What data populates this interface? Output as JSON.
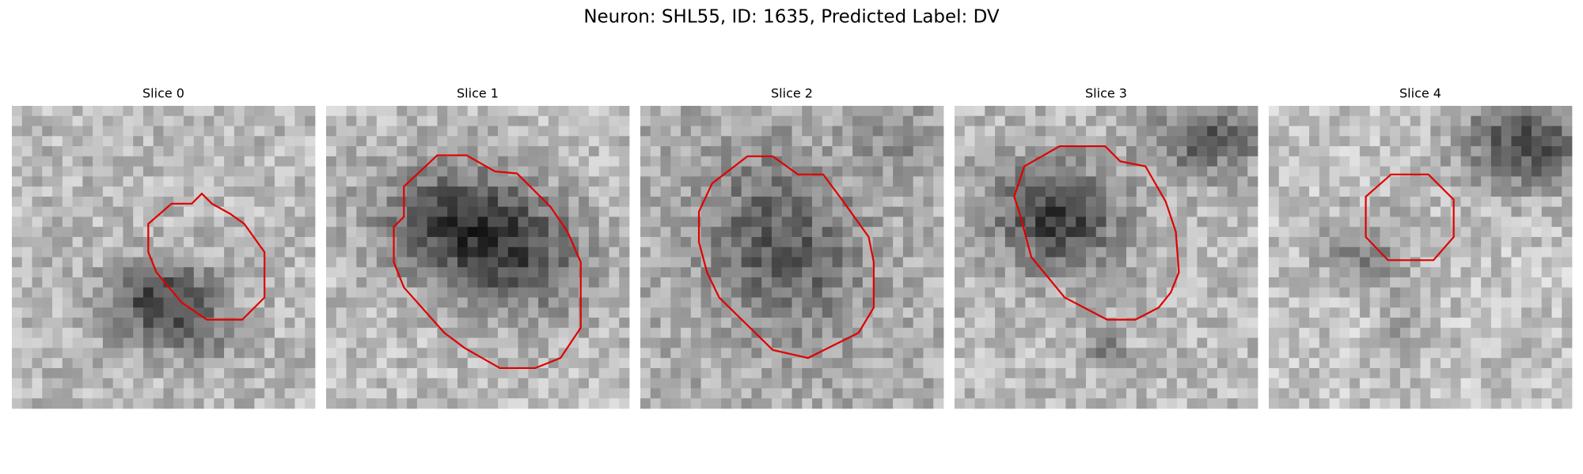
{
  "figure": {
    "title": "Neuron: SHL55, ID: 1635, Predicted Label: DV",
    "panels": [
      {
        "title": "Slice 0"
      },
      {
        "title": "Slice 1"
      },
      {
        "title": "Slice 2"
      },
      {
        "title": "Slice 3"
      },
      {
        "title": "Slice 4"
      }
    ]
  }
}
